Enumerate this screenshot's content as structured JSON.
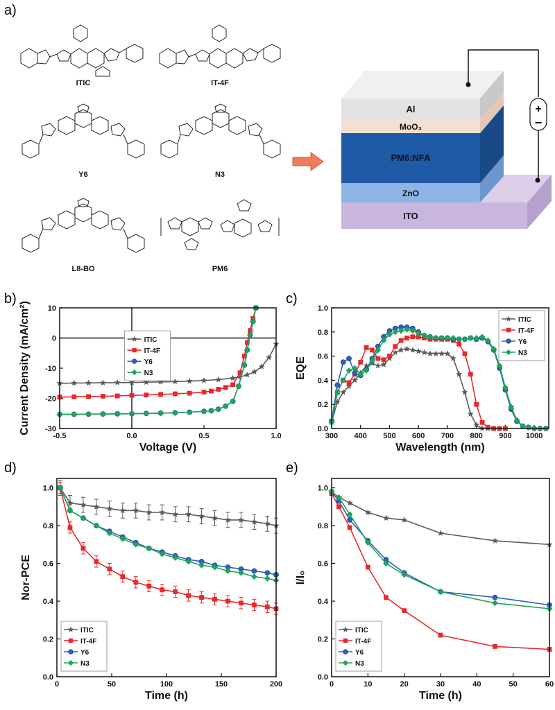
{
  "panels": {
    "a": "a)",
    "b": "b)",
    "c": "c)",
    "d": "d)",
    "e": "e)"
  },
  "molecules": [
    {
      "name": "ITIC"
    },
    {
      "name": "IT-4F"
    },
    {
      "name": "Y6"
    },
    {
      "name": "N3"
    },
    {
      "name": "L8-BO"
    },
    {
      "name": "PM6"
    }
  ],
  "device": {
    "layers": [
      "Al",
      "MoO₃",
      "PM6:NFA",
      "ZnO",
      "ITO"
    ],
    "plus": "+",
    "minus": "−"
  },
  "colors": {
    "ITIC": "#5a5a5a",
    "IT-4F": "#e8292b",
    "Y6": "#2f5fbf",
    "N3": "#20a35a"
  },
  "chart_data": [
    {
      "id": "b",
      "type": "line",
      "xlabel": "Voltage (V)",
      "ylabel": "Current Density (mA/cm²)",
      "xlim": [
        -0.5,
        1.0
      ],
      "ylim": [
        -30,
        10
      ],
      "xticks": [
        "-0.5",
        "0.0",
        "0.5",
        "1.0"
      ],
      "yticks": [
        "-30",
        "-20",
        "-10",
        "0",
        "10"
      ],
      "legend": "upper-left",
      "series": [
        {
          "name": "ITIC",
          "marker": "star",
          "x": [
            -0.5,
            -0.4,
            -0.3,
            -0.2,
            -0.1,
            0,
            0.1,
            0.2,
            0.3,
            0.4,
            0.5,
            0.6,
            0.7,
            0.75,
            0.8,
            0.85,
            0.9,
            0.95,
            1.0
          ],
          "y": [
            -15,
            -14.95,
            -14.9,
            -14.85,
            -14.8,
            -14.75,
            -14.65,
            -14.55,
            -14.45,
            -14.3,
            -14.1,
            -13.8,
            -13.3,
            -12.9,
            -12.2,
            -11.2,
            -9.5,
            -6.5,
            -2.0
          ]
        },
        {
          "name": "IT-4F",
          "marker": "square",
          "x": [
            -0.5,
            -0.4,
            -0.3,
            -0.2,
            -0.1,
            0,
            0.1,
            0.2,
            0.3,
            0.4,
            0.5,
            0.55,
            0.6,
            0.65,
            0.7,
            0.75,
            0.78,
            0.8,
            0.82,
            0.84,
            0.86
          ],
          "y": [
            -19.6,
            -19.5,
            -19.4,
            -19.3,
            -19.2,
            -19.0,
            -18.9,
            -18.7,
            -18.5,
            -18.3,
            -17.9,
            -17.6,
            -17.0,
            -16.4,
            -15.5,
            -11.5,
            -6.0,
            -1.5,
            2.5,
            6.5,
            10.0
          ]
        },
        {
          "name": "Y6",
          "marker": "circle",
          "x": [
            -0.5,
            -0.4,
            -0.3,
            -0.2,
            -0.1,
            0,
            0.1,
            0.2,
            0.3,
            0.4,
            0.5,
            0.55,
            0.6,
            0.65,
            0.7,
            0.74,
            0.78,
            0.8,
            0.82,
            0.84,
            0.86
          ],
          "y": [
            -25.3,
            -25.3,
            -25.25,
            -25.2,
            -25.15,
            -25.1,
            -25.0,
            -24.9,
            -24.8,
            -24.6,
            -24.3,
            -24.1,
            -23.6,
            -22.6,
            -21.0,
            -16.0,
            -9.0,
            -4.0,
            1.0,
            5.5,
            10.0
          ]
        },
        {
          "name": "N3",
          "marker": "diamond",
          "x": [
            -0.5,
            -0.4,
            -0.3,
            -0.2,
            -0.1,
            0,
            0.1,
            0.2,
            0.3,
            0.4,
            0.5,
            0.55,
            0.6,
            0.65,
            0.7,
            0.74,
            0.78,
            0.8,
            0.82,
            0.84,
            0.86
          ],
          "y": [
            -25.3,
            -25.3,
            -25.25,
            -25.2,
            -25.15,
            -25.1,
            -25.0,
            -24.9,
            -24.8,
            -24.6,
            -24.3,
            -24.1,
            -23.6,
            -22.6,
            -21.0,
            -16.0,
            -9.0,
            -4.0,
            1.0,
            5.5,
            10.0
          ]
        }
      ]
    },
    {
      "id": "c",
      "type": "line",
      "xlabel": "Wavelength (nm)",
      "ylabel": "EQE",
      "xlim": [
        300,
        1050
      ],
      "ylim": [
        0,
        1.0
      ],
      "xticks": [
        "300",
        "400",
        "500",
        "600",
        "700",
        "800",
        "900",
        "1000"
      ],
      "yticks": [
        "0.0",
        "0.2",
        "0.4",
        "0.6",
        "0.8",
        "1.0"
      ],
      "legend": "upper-right",
      "series": [
        {
          "name": "ITIC",
          "marker": "star",
          "x": [
            300,
            320,
            340,
            360,
            380,
            400,
            420,
            440,
            460,
            480,
            500,
            520,
            540,
            560,
            580,
            600,
            620,
            640,
            660,
            680,
            700,
            720,
            740,
            760,
            780,
            800,
            820,
            840,
            860
          ],
          "y": [
            0.05,
            0.22,
            0.3,
            0.35,
            0.4,
            0.46,
            0.52,
            0.54,
            0.52,
            0.53,
            0.58,
            0.63,
            0.65,
            0.66,
            0.65,
            0.64,
            0.63,
            0.62,
            0.62,
            0.62,
            0.62,
            0.58,
            0.45,
            0.3,
            0.12,
            0.03,
            0.0,
            0.0,
            0.0
          ]
        },
        {
          "name": "IT-4F",
          "marker": "square",
          "x": [
            300,
            320,
            340,
            360,
            380,
            400,
            420,
            440,
            460,
            480,
            500,
            520,
            540,
            560,
            580,
            600,
            620,
            640,
            660,
            680,
            700,
            720,
            740,
            760,
            780,
            800,
            820,
            840,
            860,
            880,
            900
          ],
          "y": [
            0.06,
            0.3,
            0.4,
            0.38,
            0.45,
            0.55,
            0.67,
            0.65,
            0.58,
            0.57,
            0.6,
            0.68,
            0.73,
            0.75,
            0.76,
            0.76,
            0.75,
            0.74,
            0.74,
            0.74,
            0.74,
            0.73,
            0.7,
            0.62,
            0.45,
            0.2,
            0.05,
            0.01,
            0.0,
            0.0,
            0.0
          ]
        },
        {
          "name": "Y6",
          "marker": "circle",
          "x": [
            300,
            320,
            340,
            360,
            380,
            400,
            420,
            440,
            460,
            480,
            500,
            520,
            540,
            560,
            580,
            600,
            620,
            640,
            660,
            680,
            700,
            720,
            740,
            760,
            780,
            800,
            820,
            840,
            860,
            880,
            900,
            920,
            940,
            960,
            980,
            1000,
            1020,
            1040
          ],
          "y": [
            0.06,
            0.36,
            0.55,
            0.58,
            0.46,
            0.44,
            0.49,
            0.58,
            0.68,
            0.76,
            0.81,
            0.83,
            0.84,
            0.84,
            0.83,
            0.8,
            0.77,
            0.76,
            0.75,
            0.75,
            0.75,
            0.74,
            0.74,
            0.74,
            0.75,
            0.74,
            0.75,
            0.72,
            0.65,
            0.5,
            0.32,
            0.16,
            0.06,
            0.02,
            0.01,
            0.0,
            0.0,
            0.0
          ]
        },
        {
          "name": "N3",
          "marker": "diamond",
          "x": [
            300,
            320,
            340,
            360,
            380,
            400,
            420,
            440,
            460,
            480,
            500,
            520,
            540,
            560,
            580,
            600,
            620,
            640,
            660,
            680,
            700,
            720,
            740,
            760,
            780,
            800,
            820,
            840,
            860,
            880,
            900,
            920,
            940,
            960,
            980,
            1000,
            1020,
            1040
          ],
          "y": [
            0.05,
            0.3,
            0.4,
            0.48,
            0.5,
            0.45,
            0.48,
            0.56,
            0.65,
            0.73,
            0.78,
            0.8,
            0.81,
            0.82,
            0.81,
            0.79,
            0.77,
            0.76,
            0.75,
            0.75,
            0.75,
            0.75,
            0.74,
            0.74,
            0.75,
            0.75,
            0.76,
            0.73,
            0.66,
            0.52,
            0.34,
            0.18,
            0.07,
            0.02,
            0.01,
            0.0,
            0.0,
            0.0
          ]
        }
      ]
    },
    {
      "id": "d",
      "type": "line",
      "xlabel": "Time (h)",
      "ylabel": "Nor-PCE",
      "xlim": [
        0,
        200
      ],
      "ylim": [
        0,
        1.05
      ],
      "xticks": [
        "0",
        "50",
        "100",
        "150",
        "200"
      ],
      "yticks": [
        "0.0",
        "0.2",
        "0.4",
        "0.6",
        "0.8",
        "1.0"
      ],
      "legend": "lower-left",
      "series": [
        {
          "name": "ITIC",
          "marker": "star",
          "x": [
            3,
            12,
            24,
            36,
            48,
            60,
            72,
            84,
            96,
            108,
            120,
            132,
            144,
            156,
            168,
            180,
            192,
            200
          ],
          "y": [
            1.0,
            0.92,
            0.91,
            0.9,
            0.89,
            0.88,
            0.88,
            0.87,
            0.87,
            0.86,
            0.86,
            0.85,
            0.84,
            0.83,
            0.83,
            0.82,
            0.81,
            0.8
          ],
          "err": 0.04
        },
        {
          "name": "IT-4F",
          "marker": "square",
          "x": [
            3,
            12,
            24,
            36,
            48,
            60,
            72,
            84,
            96,
            108,
            120,
            132,
            144,
            156,
            168,
            180,
            192,
            200
          ],
          "y": [
            1.0,
            0.79,
            0.68,
            0.61,
            0.57,
            0.53,
            0.5,
            0.48,
            0.46,
            0.45,
            0.43,
            0.42,
            0.41,
            0.4,
            0.39,
            0.38,
            0.37,
            0.36
          ],
          "err": 0.03
        },
        {
          "name": "Y6",
          "marker": "circle",
          "x": [
            3,
            12,
            24,
            36,
            48,
            60,
            72,
            84,
            96,
            108,
            120,
            132,
            144,
            156,
            168,
            180,
            192,
            200
          ],
          "y": [
            1.0,
            0.88,
            0.84,
            0.8,
            0.77,
            0.74,
            0.71,
            0.68,
            0.66,
            0.64,
            0.62,
            0.61,
            0.59,
            0.58,
            0.57,
            0.56,
            0.55,
            0.54
          ],
          "err": 0.0
        },
        {
          "name": "N3",
          "marker": "diamond",
          "x": [
            3,
            12,
            24,
            36,
            48,
            60,
            72,
            84,
            96,
            108,
            120,
            132,
            144,
            156,
            168,
            180,
            192,
            200
          ],
          "y": [
            1.0,
            0.88,
            0.84,
            0.8,
            0.76,
            0.73,
            0.7,
            0.68,
            0.65,
            0.63,
            0.61,
            0.59,
            0.58,
            0.56,
            0.55,
            0.53,
            0.52,
            0.51
          ],
          "err": 0.0
        }
      ]
    },
    {
      "id": "e",
      "type": "line",
      "xlabel": "Time (h)",
      "ylabel": "I/I₀",
      "xlim": [
        0,
        60
      ],
      "ylim": [
        0,
        1.05
      ],
      "xticks": [
        "0",
        "10",
        "20",
        "30",
        "40",
        "50",
        "60"
      ],
      "yticks": [
        "0.0",
        "0.2",
        "0.4",
        "0.6",
        "0.8",
        "1.0"
      ],
      "legend": "lower-left",
      "series": [
        {
          "name": "ITIC",
          "marker": "star",
          "x": [
            0,
            2,
            5,
            10,
            15,
            20,
            30,
            45,
            60
          ],
          "y": [
            0.98,
            0.95,
            0.92,
            0.87,
            0.84,
            0.83,
            0.76,
            0.72,
            0.7
          ]
        },
        {
          "name": "IT-4F",
          "marker": "square",
          "x": [
            0,
            2,
            5,
            10,
            15,
            20,
            30,
            45,
            60
          ],
          "y": [
            0.97,
            0.9,
            0.79,
            0.58,
            0.42,
            0.35,
            0.22,
            0.16,
            0.145
          ]
        },
        {
          "name": "Y6",
          "marker": "circle",
          "x": [
            0,
            2,
            5,
            10,
            15,
            20,
            30,
            45,
            60
          ],
          "y": [
            0.98,
            0.93,
            0.83,
            0.72,
            0.62,
            0.55,
            0.45,
            0.42,
            0.38
          ]
        },
        {
          "name": "N3",
          "marker": "diamond",
          "x": [
            0,
            2,
            5,
            10,
            15,
            20,
            30,
            45,
            60
          ],
          "y": [
            0.98,
            0.95,
            0.86,
            0.71,
            0.6,
            0.54,
            0.45,
            0.39,
            0.36
          ]
        }
      ]
    }
  ]
}
